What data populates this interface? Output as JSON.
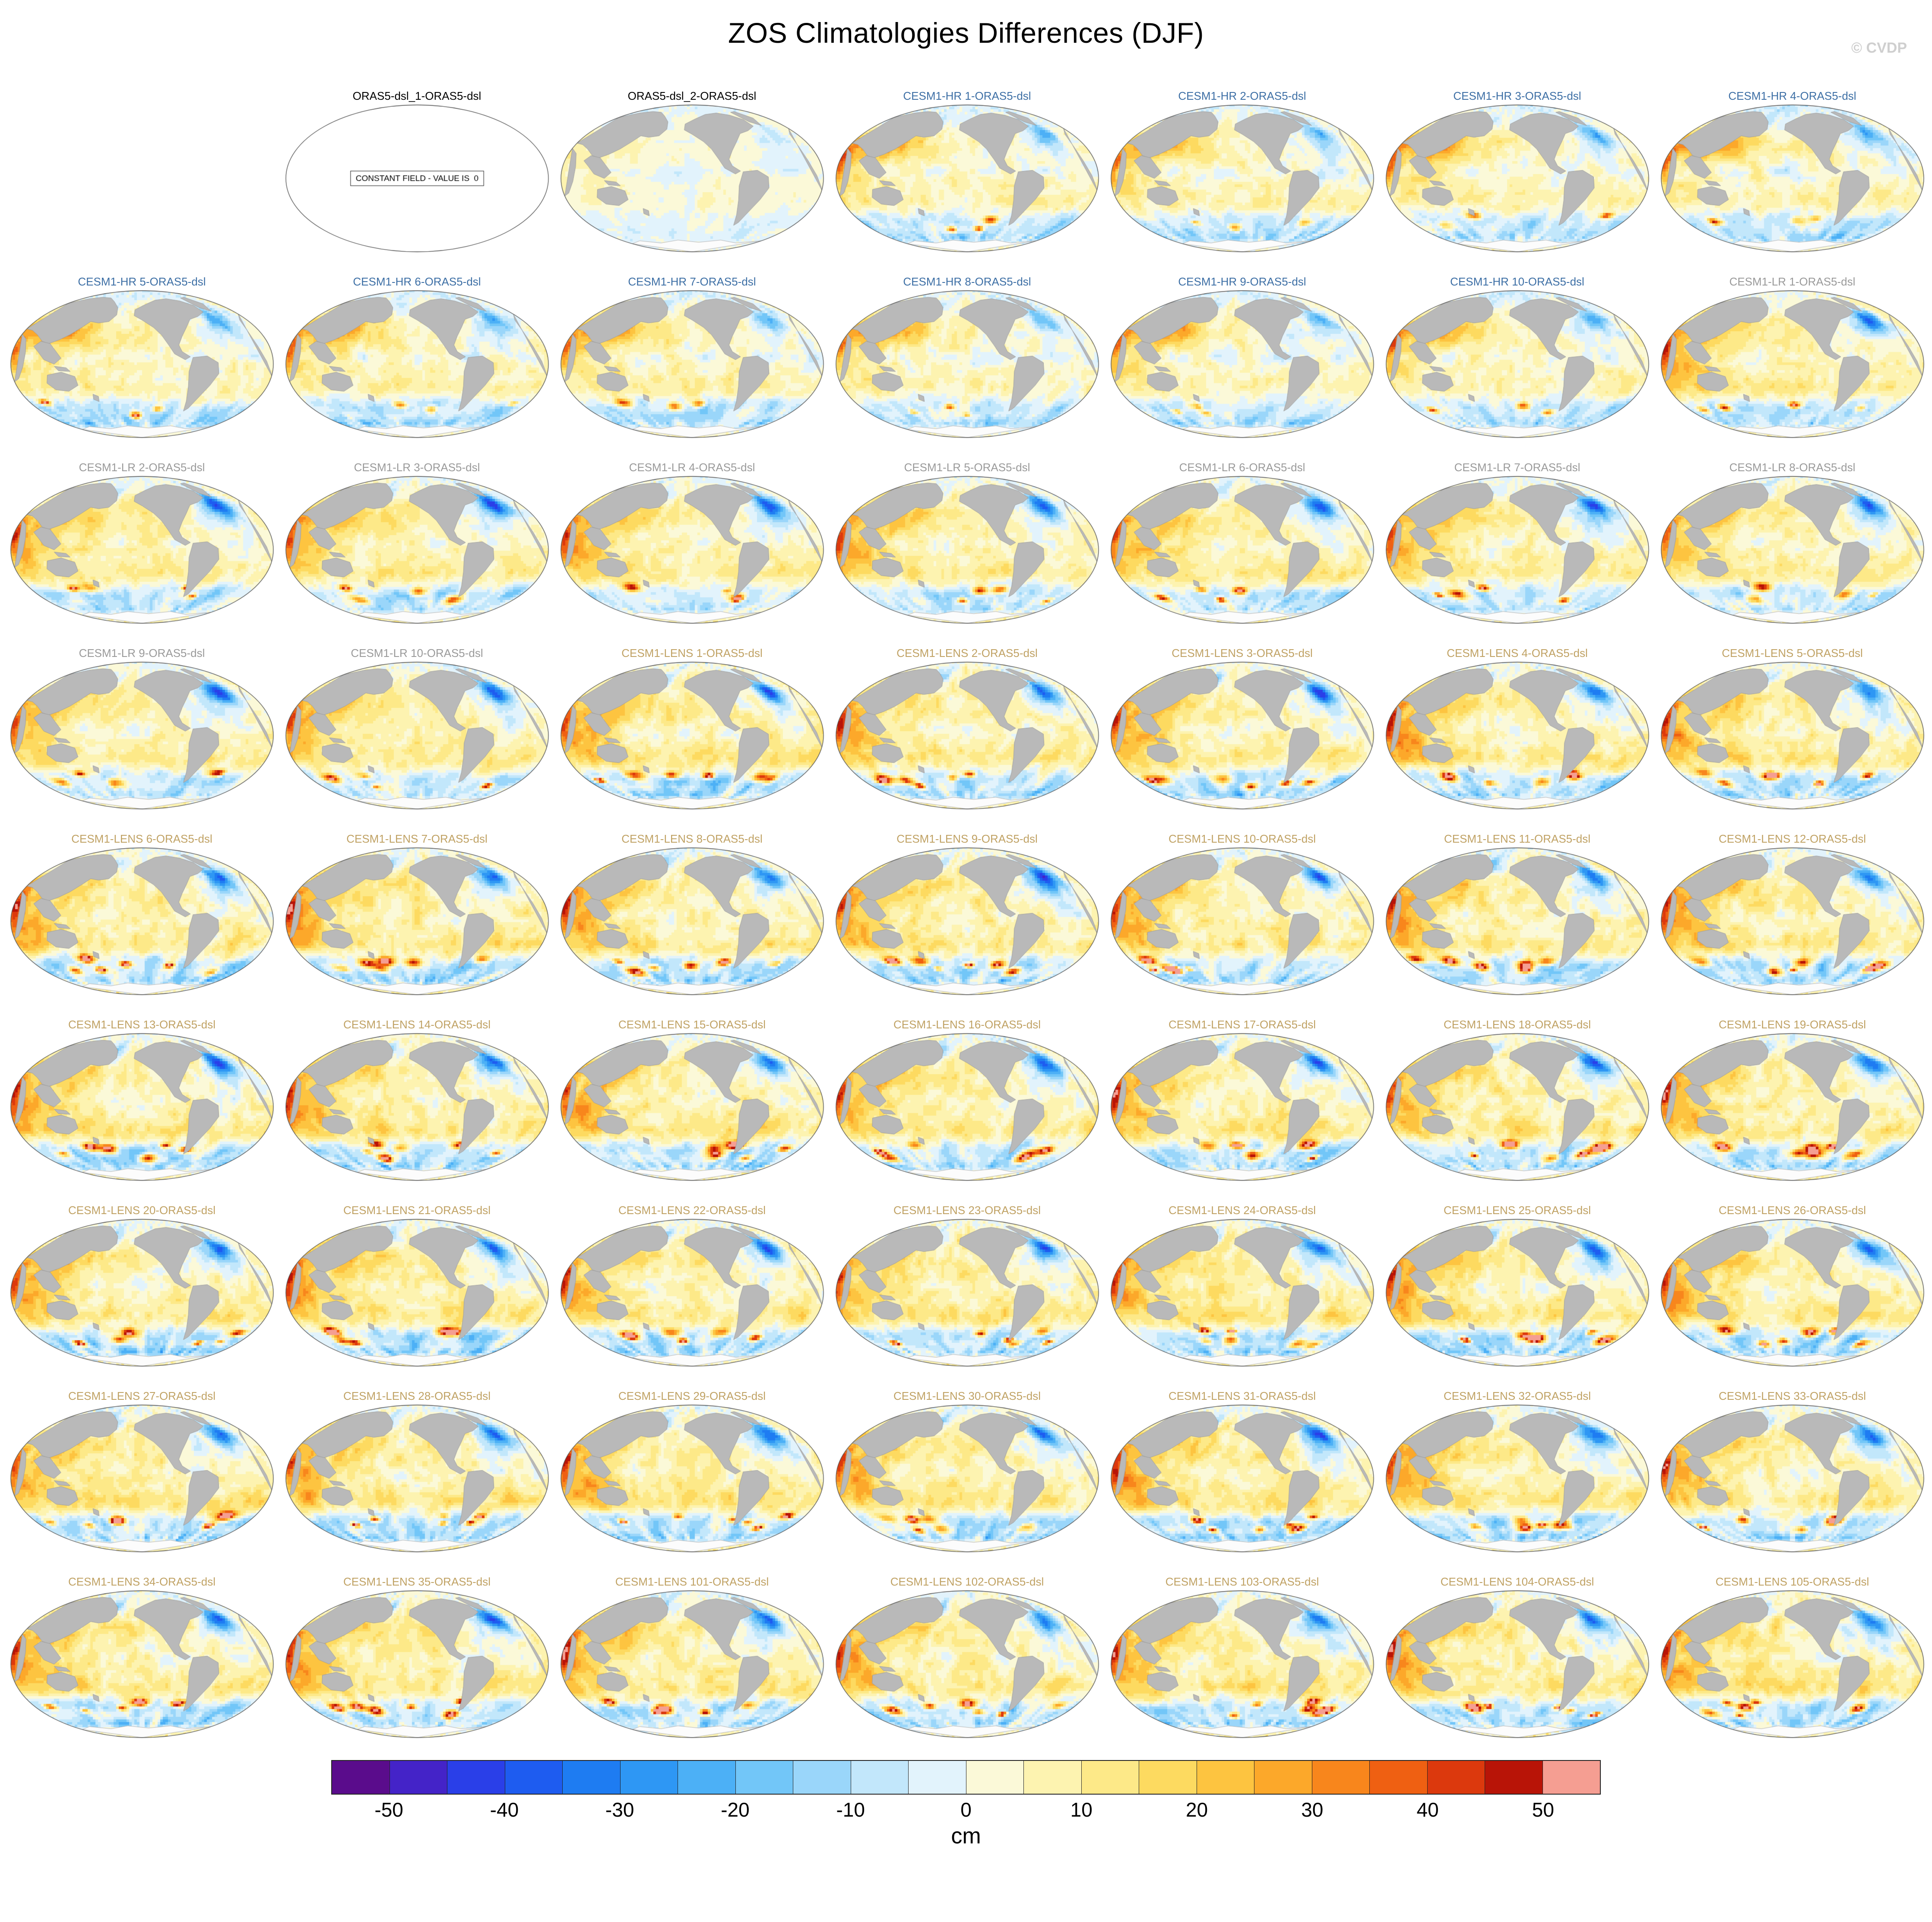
{
  "title": "ZOS Climatologies Differences (DJF)",
  "watermark": "© CVDP",
  "constant_note": "CONSTANT FIELD - VALUE IS  0",
  "group_colors": {
    "constant": "#000000",
    "oras2": "#000000",
    "hr": "#3d6fa5",
    "lr": "#9a9a9a",
    "lens": "#c0a264"
  },
  "colorbar": {
    "unit": "cm",
    "min": -55,
    "max": 55,
    "step": 5,
    "tick_labels": [
      "-50",
      "-40",
      "-30",
      "-20",
      "-10",
      "0",
      "10",
      "20",
      "30",
      "40",
      "50"
    ],
    "colors": [
      "#5a0c8c",
      "#4423c8",
      "#2a3fe8",
      "#1e5cf0",
      "#1e7cf2",
      "#2e97f4",
      "#4cb0f6",
      "#72c6f8",
      "#9ad6fa",
      "#c2e7fb",
      "#e2f3fc",
      "#fbf9d8",
      "#fdf3b0",
      "#fde988",
      "#fdda60",
      "#fdc440",
      "#fca82a",
      "#f8861c",
      "#ef6012",
      "#dc390d",
      "#b81407",
      "#f59e92"
    ]
  },
  "chart_data": {
    "type": "heatmap",
    "title": "ZOS Climatologies Differences (DJF)",
    "unit": "cm",
    "colorbar_ticks": [
      -50,
      -40,
      -30,
      -20,
      -10,
      0,
      10,
      20,
      30,
      40,
      50
    ],
    "value_range": [
      -55,
      55
    ],
    "grid": {
      "rows": 9,
      "columns": 7,
      "first_row_offset": 1
    },
    "panels": [
      {
        "label": "ORAS5-dsl_1-ORAS5-dsl",
        "group": "constant"
      },
      {
        "label": "ORAS5-dsl_2-ORAS5-dsl",
        "group": "oras2"
      },
      {
        "label": "CESM1-HR 1-ORAS5-dsl",
        "group": "hr"
      },
      {
        "label": "CESM1-HR 2-ORAS5-dsl",
        "group": "hr"
      },
      {
        "label": "CESM1-HR 3-ORAS5-dsl",
        "group": "hr"
      },
      {
        "label": "CESM1-HR 4-ORAS5-dsl",
        "group": "hr"
      },
      {
        "label": "CESM1-HR 5-ORAS5-dsl",
        "group": "hr"
      },
      {
        "label": "CESM1-HR 6-ORAS5-dsl",
        "group": "hr"
      },
      {
        "label": "CESM1-HR 7-ORAS5-dsl",
        "group": "hr"
      },
      {
        "label": "CESM1-HR 8-ORAS5-dsl",
        "group": "hr"
      },
      {
        "label": "CESM1-HR 9-ORAS5-dsl",
        "group": "hr"
      },
      {
        "label": "CESM1-HR 10-ORAS5-dsl",
        "group": "hr"
      },
      {
        "label": "CESM1-LR 1-ORAS5-dsl",
        "group": "lr"
      },
      {
        "label": "CESM1-LR 2-ORAS5-dsl",
        "group": "lr"
      },
      {
        "label": "CESM1-LR 3-ORAS5-dsl",
        "group": "lr"
      },
      {
        "label": "CESM1-LR 4-ORAS5-dsl",
        "group": "lr"
      },
      {
        "label": "CESM1-LR 5-ORAS5-dsl",
        "group": "lr"
      },
      {
        "label": "CESM1-LR 6-ORAS5-dsl",
        "group": "lr"
      },
      {
        "label": "CESM1-LR 7-ORAS5-dsl",
        "group": "lr"
      },
      {
        "label": "CESM1-LR 8-ORAS5-dsl",
        "group": "lr"
      },
      {
        "label": "CESM1-LR 9-ORAS5-dsl",
        "group": "lr"
      },
      {
        "label": "CESM1-LR 10-ORAS5-dsl",
        "group": "lr"
      },
      {
        "label": "CESM1-LENS 1-ORAS5-dsl",
        "group": "lens"
      },
      {
        "label": "CESM1-LENS 2-ORAS5-dsl",
        "group": "lens"
      },
      {
        "label": "CESM1-LENS 3-ORAS5-dsl",
        "group": "lens"
      },
      {
        "label": "CESM1-LENS 4-ORAS5-dsl",
        "group": "lens"
      },
      {
        "label": "CESM1-LENS 5-ORAS5-dsl",
        "group": "lens"
      },
      {
        "label": "CESM1-LENS 6-ORAS5-dsl",
        "group": "lens"
      },
      {
        "label": "CESM1-LENS 7-ORAS5-dsl",
        "group": "lens"
      },
      {
        "label": "CESM1-LENS 8-ORAS5-dsl",
        "group": "lens"
      },
      {
        "label": "CESM1-LENS 9-ORAS5-dsl",
        "group": "lens"
      },
      {
        "label": "CESM1-LENS 10-ORAS5-dsl",
        "group": "lens"
      },
      {
        "label": "CESM1-LENS 11-ORAS5-dsl",
        "group": "lens"
      },
      {
        "label": "CESM1-LENS 12-ORAS5-dsl",
        "group": "lens"
      },
      {
        "label": "CESM1-LENS 13-ORAS5-dsl",
        "group": "lens"
      },
      {
        "label": "CESM1-LENS 14-ORAS5-dsl",
        "group": "lens"
      },
      {
        "label": "CESM1-LENS 15-ORAS5-dsl",
        "group": "lens"
      },
      {
        "label": "CESM1-LENS 16-ORAS5-dsl",
        "group": "lens"
      },
      {
        "label": "CESM1-LENS 17-ORAS5-dsl",
        "group": "lens"
      },
      {
        "label": "CESM1-LENS 18-ORAS5-dsl",
        "group": "lens"
      },
      {
        "label": "CESM1-LENS 19-ORAS5-dsl",
        "group": "lens"
      },
      {
        "label": "CESM1-LENS 20-ORAS5-dsl",
        "group": "lens"
      },
      {
        "label": "CESM1-LENS 21-ORAS5-dsl",
        "group": "lens"
      },
      {
        "label": "CESM1-LENS 22-ORAS5-dsl",
        "group": "lens"
      },
      {
        "label": "CESM1-LENS 23-ORAS5-dsl",
        "group": "lens"
      },
      {
        "label": "CESM1-LENS 24-ORAS5-dsl",
        "group": "lens"
      },
      {
        "label": "CESM1-LENS 25-ORAS5-dsl",
        "group": "lens"
      },
      {
        "label": "CESM1-LENS 26-ORAS5-dsl",
        "group": "lens"
      },
      {
        "label": "CESM1-LENS 27-ORAS5-dsl",
        "group": "lens"
      },
      {
        "label": "CESM1-LENS 28-ORAS5-dsl",
        "group": "lens"
      },
      {
        "label": "CESM1-LENS 29-ORAS5-dsl",
        "group": "lens"
      },
      {
        "label": "CESM1-LENS 30-ORAS5-dsl",
        "group": "lens"
      },
      {
        "label": "CESM1-LENS 31-ORAS5-dsl",
        "group": "lens"
      },
      {
        "label": "CESM1-LENS 32-ORAS5-dsl",
        "group": "lens"
      },
      {
        "label": "CESM1-LENS 33-ORAS5-dsl",
        "group": "lens"
      },
      {
        "label": "CESM1-LENS 34-ORAS5-dsl",
        "group": "lens"
      },
      {
        "label": "CESM1-LENS 35-ORAS5-dsl",
        "group": "lens"
      },
      {
        "label": "CESM1-LENS 101-ORAS5-dsl",
        "group": "lens"
      },
      {
        "label": "CESM1-LENS 102-ORAS5-dsl",
        "group": "lens"
      },
      {
        "label": "CESM1-LENS 103-ORAS5-dsl",
        "group": "lens"
      },
      {
        "label": "CESM1-LENS 104-ORAS5-dsl",
        "group": "lens"
      },
      {
        "label": "CESM1-LENS 105-ORAS5-dsl",
        "group": "lens"
      }
    ]
  }
}
